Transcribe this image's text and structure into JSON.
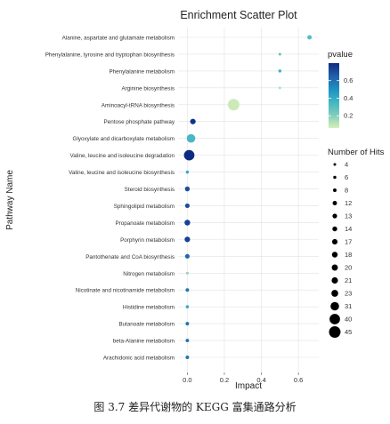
{
  "caption": "图 3.7 差异代谢物的 KEGG 富集通路分析",
  "chart_data": {
    "type": "scatter",
    "title": "Enrichment Scatter Plot",
    "xlabel": "Impact",
    "ylabel": "Pathway Name",
    "xlim": [
      -0.05,
      0.71
    ],
    "xticks": [
      0.0,
      0.2,
      0.4,
      0.6
    ],
    "xtick_labels": [
      "0.0",
      "0.2",
      "0.4",
      "0.6"
    ],
    "grid": true,
    "background": "#ffffff",
    "grid_color": "#e2e2e2",
    "points": [
      {
        "pathway": "Alanine, aspartate and glutamate metabolism",
        "impact": 0.66,
        "pvalue": 0.31,
        "hits": 12
      },
      {
        "pathway": "Phenylalanine, tyrosine and tryptophan biosynthesis",
        "impact": 0.5,
        "pvalue": 0.28,
        "hits": 4
      },
      {
        "pathway": "Phenylalanine metabolism",
        "impact": 0.5,
        "pvalue": 0.36,
        "hits": 6
      },
      {
        "pathway": "Arginine biosynthesis",
        "impact": 0.5,
        "pvalue": 0.12,
        "hits": 4
      },
      {
        "pathway": "Aminoacyl-tRNA biosynthesis",
        "impact": 0.25,
        "pvalue": 0.08,
        "hits": 45
      },
      {
        "pathway": "Pentose phosphate pathway",
        "impact": 0.03,
        "pvalue": 0.78,
        "hits": 17
      },
      {
        "pathway": "Glyoxylate and dicarboxylate metabolism",
        "impact": 0.02,
        "pvalue": 0.34,
        "hits": 31
      },
      {
        "pathway": "Valine, leucine and isoleucine degradation",
        "impact": 0.01,
        "pvalue": 0.82,
        "hits": 40
      },
      {
        "pathway": "Valine, leucine and isoleucine biosynthesis",
        "impact": 0.0,
        "pvalue": 0.4,
        "hits": 6
      },
      {
        "pathway": "Steroid biosynthesis",
        "impact": 0.0,
        "pvalue": 0.7,
        "hits": 14
      },
      {
        "pathway": "Sphingolipid metabolism",
        "impact": 0.0,
        "pvalue": 0.7,
        "hits": 13
      },
      {
        "pathway": "Propanoate metabolism",
        "impact": 0.0,
        "pvalue": 0.74,
        "hits": 18
      },
      {
        "pathway": "Porphyrin metabolism",
        "impact": 0.0,
        "pvalue": 0.74,
        "hits": 17
      },
      {
        "pathway": "Pantothenate and CoA biosynthesis",
        "impact": 0.0,
        "pvalue": 0.62,
        "hits": 13
      },
      {
        "pathway": "Nitrogen metabolism",
        "impact": 0.0,
        "pvalue": 0.18,
        "hits": 4
      },
      {
        "pathway": "Nicotinate and nicotinamide metabolism",
        "impact": 0.0,
        "pvalue": 0.58,
        "hits": 8
      },
      {
        "pathway": "Histidine metabolism",
        "impact": 0.0,
        "pvalue": 0.42,
        "hits": 6
      },
      {
        "pathway": "Butanoate metabolism",
        "impact": 0.0,
        "pvalue": 0.58,
        "hits": 8
      },
      {
        "pathway": "beta-Alanine metabolism",
        "impact": 0.0,
        "pvalue": 0.58,
        "hits": 8
      },
      {
        "pathway": "Arachidonic acid metabolism",
        "impact": 0.0,
        "pvalue": 0.58,
        "hits": 8
      }
    ],
    "color_legend": {
      "title": "pvalue",
      "domain": [
        0.06,
        0.8
      ],
      "ticks": [
        0.2,
        0.4,
        0.6
      ],
      "tick_labels": [
        "0.2",
        "0.4",
        "0.6"
      ],
      "colors": [
        "#d7efb8",
        "#7fcdbb",
        "#41b6c4",
        "#1d91c0",
        "#225ea8",
        "#0c2c84"
      ]
    },
    "size_legend": {
      "title": "Number of Hits",
      "values": [
        4,
        6,
        8,
        12,
        13,
        14,
        17,
        18,
        20,
        21,
        23,
        31,
        40,
        45
      ],
      "labels": [
        "4",
        "6",
        "8",
        "12",
        "13",
        "14",
        "17",
        "18",
        "20",
        "21",
        "23",
        "31",
        "40",
        "45"
      ]
    }
  }
}
